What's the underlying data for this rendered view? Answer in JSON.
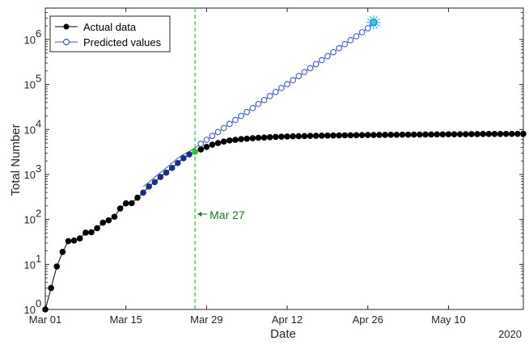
{
  "chart_data": {
    "type": "line",
    "title": "",
    "xlabel": "Date",
    "ylabel": "Total Number",
    "y_scale": "log",
    "ylim": [
      1,
      5000000
    ],
    "xlim": [
      "2020-03-01",
      "2020-05-23"
    ],
    "x_ticks": [
      "Mar 01",
      "Mar 15",
      "Mar 29",
      "Apr 12",
      "Apr 26",
      "May 10"
    ],
    "x_tick_dates": [
      "2020-03-01",
      "2020-03-15",
      "2020-03-29",
      "2020-04-12",
      "2020-04-26",
      "2020-05-10"
    ],
    "y_ticks": [
      {
        "value": 1,
        "base": "10",
        "exp": "0"
      },
      {
        "value": 10,
        "base": "10",
        "exp": "1"
      },
      {
        "value": 100,
        "base": "10",
        "exp": "2"
      },
      {
        "value": 1000,
        "base": "10",
        "exp": "3"
      },
      {
        "value": 10000,
        "base": "10",
        "exp": "4"
      },
      {
        "value": 100000,
        "base": "10",
        "exp": "5"
      },
      {
        "value": 1000000,
        "base": "10",
        "exp": "6"
      }
    ],
    "year_label": "2020",
    "legend": {
      "position": "top-left",
      "entries": [
        "Actual data",
        "Predicted values"
      ]
    },
    "grid": false,
    "colors": {
      "actual": "#000000",
      "predicted": "#3a5bd9",
      "highlight_overlap": "#1a2f8c",
      "marker_date": "#22cc22",
      "annotation": "#1a7a1a",
      "endpoint": "#33ccee"
    },
    "annotation": {
      "label": "Mar 27",
      "date": "2020-03-27"
    },
    "series": [
      {
        "name": "Actual data",
        "start_date": "2020-03-01",
        "values": [
          1,
          3,
          9,
          19,
          33,
          34,
          38,
          51,
          52,
          64,
          85,
          96,
          115,
          175,
          228,
          230,
          305,
          395,
          540,
          680,
          880,
          1100,
          1400,
          1800,
          2300,
          2800,
          3200,
          3600,
          4100,
          4600,
          5000,
          5400,
          5700,
          5900,
          6100,
          6250,
          6400,
          6550,
          6650,
          6750,
          6850,
          6920,
          6990,
          7050,
          7100,
          7150,
          7200,
          7240,
          7280,
          7320,
          7360,
          7390,
          7420,
          7450,
          7480,
          7510,
          7540,
          7560,
          7580,
          7600,
          7620,
          7640,
          7660,
          7680,
          7700,
          7720,
          7740,
          7760,
          7780,
          7800,
          7820,
          7840,
          7860,
          7880,
          7900,
          7920,
          7940,
          7950,
          7960,
          7970,
          7980,
          7990,
          8000,
          8010
        ]
      },
      {
        "name": "Predicted values",
        "start_date": "2020-03-18",
        "values": [
          540,
          680,
          880,
          1100,
          1400,
          1800,
          2300,
          2800,
          3250,
          3900,
          4800,
          5900,
          7200,
          8800,
          10800,
          13300,
          16300,
          20000,
          24500,
          30000,
          36900,
          45200,
          55500,
          68000,
          83500,
          102000,
          125000,
          154000,
          189000,
          231000,
          284000,
          348000,
          427000,
          523000,
          642000,
          787000,
          965000,
          1180000,
          1450000,
          1780000,
          2400000
        ]
      }
    ]
  }
}
